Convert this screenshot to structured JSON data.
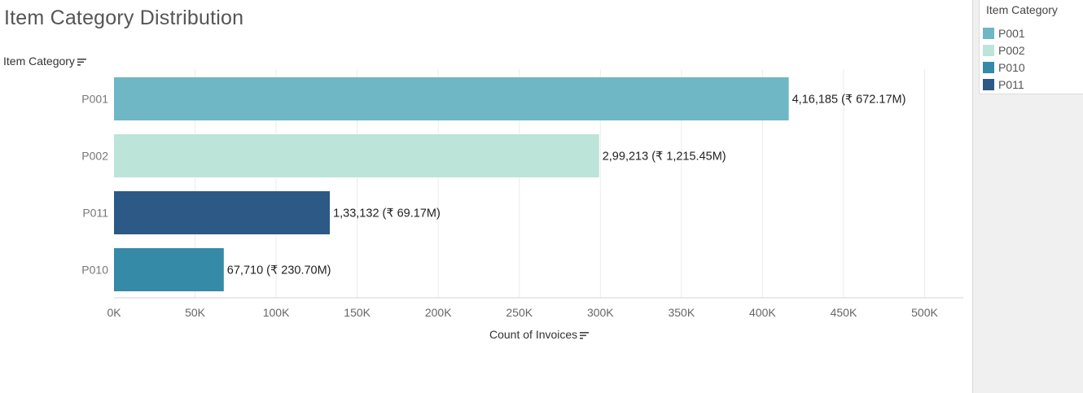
{
  "title": "Item Category Distribution",
  "legend": {
    "title": "Item Category",
    "items": [
      {
        "label": "P001",
        "color": "#6fb7c4"
      },
      {
        "label": "P002",
        "color": "#bce4d8"
      },
      {
        "label": "P010",
        "color": "#348aa7"
      },
      {
        "label": "P011",
        "color": "#2c5985"
      }
    ]
  },
  "chart_data": {
    "type": "bar",
    "orientation": "horizontal",
    "ylabel": "Item Category",
    "xlabel": "Count of Invoices",
    "categories": [
      "P001",
      "P002",
      "P011",
      "P010"
    ],
    "values": [
      416185,
      299213,
      133132,
      67710
    ],
    "colors": [
      "#6fb7c4",
      "#bce4d8",
      "#2c5985",
      "#348aa7"
    ],
    "data_labels": [
      "4,16,185 (₹ 672.17M)",
      "2,99,213 (₹ 1,215.45M)",
      "1,33,132 (₹ 69.17M)",
      "67,710 (₹ 230.70M)"
    ],
    "xlim": [
      0,
      525000
    ],
    "xticks": [
      0,
      50000,
      100000,
      150000,
      200000,
      250000,
      300000,
      350000,
      400000,
      450000,
      500000
    ],
    "xtick_labels": [
      "0K",
      "50K",
      "100K",
      "150K",
      "200K",
      "250K",
      "300K",
      "350K",
      "400K",
      "450K",
      "500K"
    ],
    "grid": "vertical",
    "legend_position": "right"
  }
}
